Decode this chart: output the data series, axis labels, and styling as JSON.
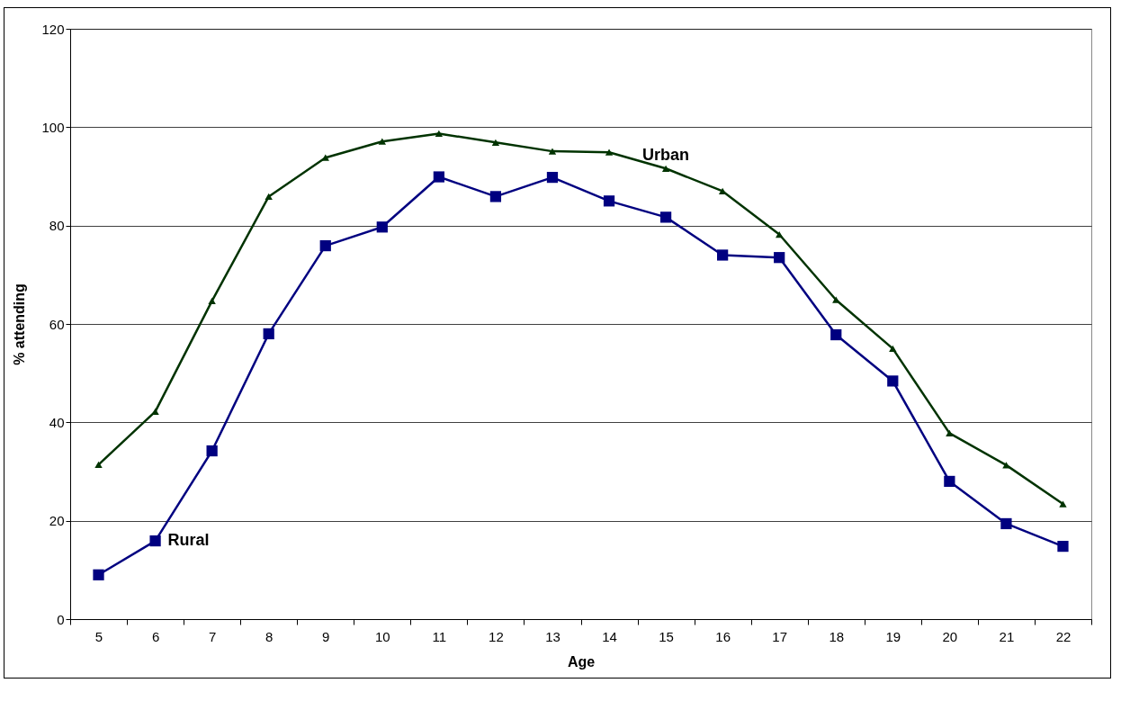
{
  "chart_data": {
    "type": "line",
    "xlabel": "Age",
    "ylabel": "% attending",
    "categories": [
      "5",
      "6",
      "7",
      "8",
      "9",
      "10",
      "11",
      "12",
      "13",
      "14",
      "15",
      "16",
      "17",
      "18",
      "19",
      "20",
      "21",
      "22"
    ],
    "series": [
      {
        "name": "Urban",
        "color": "#003300",
        "marker": "triangle",
        "values": [
          31.4,
          42.2,
          64.7,
          85.9,
          93.8,
          97.1,
          98.7,
          96.9,
          95.1,
          94.9,
          91.6,
          87.0,
          78.2,
          64.9,
          55.0,
          37.8,
          31.3,
          23.4
        ]
      },
      {
        "name": "Rural",
        "color": "#000080",
        "marker": "square",
        "values": [
          9.0,
          15.9,
          34.2,
          58.0,
          75.9,
          79.7,
          89.9,
          85.9,
          89.8,
          85.0,
          81.7,
          74.0,
          73.5,
          57.8,
          48.4,
          28.0,
          19.4,
          14.8
        ]
      }
    ],
    "ylim": [
      0,
      120
    ],
    "yticks": [
      0,
      20,
      40,
      60,
      80,
      100,
      120
    ],
    "grid": "y"
  }
}
